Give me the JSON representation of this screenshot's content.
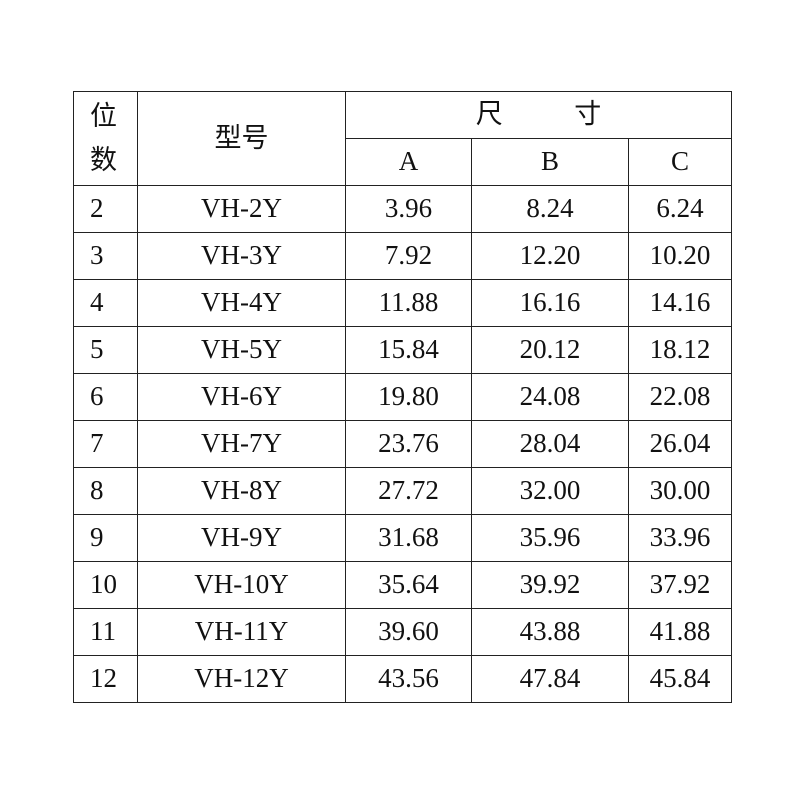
{
  "table": {
    "header": {
      "position": "位数",
      "model": "型号",
      "size": "尺 寸",
      "columns": [
        "A",
        "B",
        "C"
      ]
    },
    "rows": [
      [
        "2",
        "VH-2Y",
        "3.96",
        "8.24",
        "6.24"
      ],
      [
        "3",
        "VH-3Y",
        "7.92",
        "12.20",
        "10.20"
      ],
      [
        "4",
        "VH-4Y",
        "11.88",
        "16.16",
        "14.16"
      ],
      [
        "5",
        "VH-5Y",
        "15.84",
        "20.12",
        "18.12"
      ],
      [
        "6",
        "VH-6Y",
        "19.80",
        "24.08",
        "22.08"
      ],
      [
        "7",
        "VH-7Y",
        "23.76",
        "28.04",
        "26.04"
      ],
      [
        "8",
        "VH-8Y",
        "27.72",
        "32.00",
        "30.00"
      ],
      [
        "9",
        "VH-9Y",
        "31.68",
        "35.96",
        "33.96"
      ],
      [
        "10",
        "VH-10Y",
        "35.64",
        "39.92",
        "37.92"
      ],
      [
        "11",
        "VH-11Y",
        "39.60",
        "43.88",
        "41.88"
      ],
      [
        "12",
        "VH-12Y",
        "43.56",
        "47.84",
        "45.84"
      ]
    ]
  }
}
